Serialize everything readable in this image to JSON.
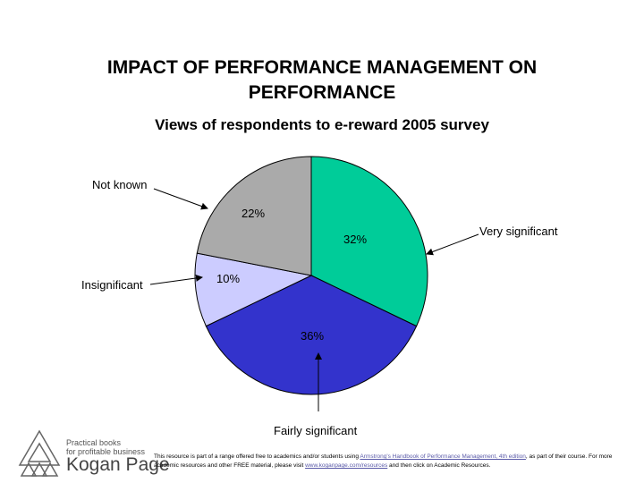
{
  "title_line1": "IMPACT OF PERFORMANCE MANAGEMENT ON",
  "title_line2": "PERFORMANCE",
  "chart_data": {
    "type": "pie",
    "title": "IMPACT OF PERFORMANCE MANAGEMENT ON PERFORMANCE",
    "subtitle": "Views of respondents to e-reward 2005 survey",
    "categories": [
      "Very significant",
      "Fairly significant",
      "Insignificant",
      "Not known"
    ],
    "values": [
      32,
      36,
      10,
      22
    ],
    "value_labels": [
      "32%",
      "36%",
      "10%",
      "22%"
    ],
    "colors": [
      "#00cc99",
      "#3333cc",
      "#ccccff",
      "#aaaaaa"
    ]
  },
  "footer": {
    "tagline_1": "Practical books",
    "tagline_2": "for profitable business",
    "brand": "Kogan Page",
    "note_part1": "This resource is part of a range offered free to academics and/or students using ",
    "note_link1": "Armstrong's Handbook of Performance Management, 4th edition",
    "note_part2": ", as part of their course. For more academic resources and other FREE material, please visit ",
    "note_link2": "www.koganpage.com/resources",
    "note_part3": " and then click on Academic Resources."
  }
}
